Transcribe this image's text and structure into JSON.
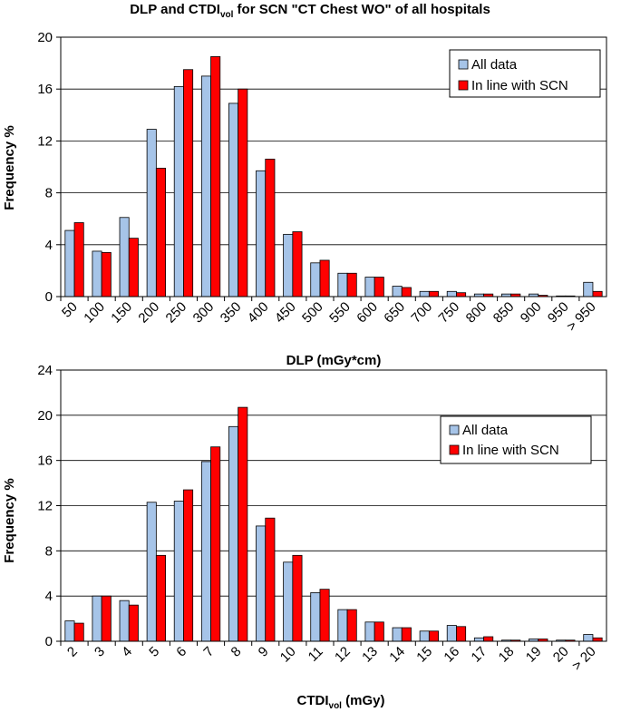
{
  "title": {
    "prefix": "DLP and CTDI",
    "subscript": "vol",
    "suffix": " for SCN \"CT Chest WO\" of all hospitals"
  },
  "colors": {
    "all_data": "#a6c4e8",
    "in_line": "#ff0000",
    "frame": "#000000",
    "grid": "#000000"
  },
  "chart_data": [
    {
      "type": "bar",
      "xlabel": "DLP (mGy*cm)",
      "ylabel": "Frequency %",
      "ylim": [
        0,
        20
      ],
      "yticks": [
        0,
        4,
        8,
        12,
        16,
        20
      ],
      "grid": true,
      "legend_position": "top-right",
      "categories": [
        "50",
        "100",
        "150",
        "200",
        "250",
        "300",
        "350",
        "400",
        "450",
        "500",
        "550",
        "600",
        "650",
        "700",
        "750",
        "800",
        "850",
        "900",
        "950",
        "> 950"
      ],
      "series": [
        {
          "name": "All data",
          "values": [
            5.1,
            3.5,
            6.1,
            12.9,
            16.2,
            17.0,
            14.9,
            9.7,
            4.8,
            2.6,
            1.8,
            1.5,
            0.8,
            0.4,
            0.4,
            0.2,
            0.2,
            0.2,
            0.05,
            1.1
          ]
        },
        {
          "name": "In line with SCN",
          "values": [
            5.7,
            3.4,
            4.5,
            9.9,
            17.5,
            18.5,
            16.0,
            10.6,
            5.0,
            2.8,
            1.8,
            1.5,
            0.7,
            0.4,
            0.3,
            0.2,
            0.2,
            0.1,
            0.05,
            0.4
          ]
        }
      ]
    },
    {
      "type": "bar",
      "xlabel_prefix": "CTDI",
      "xlabel_sub": "vol",
      "xlabel_suffix": " (mGy)",
      "ylabel": "Frequency %",
      "ylim": [
        0,
        24
      ],
      "yticks": [
        0,
        4,
        8,
        12,
        16,
        20,
        24
      ],
      "grid": true,
      "legend_position": "top-right",
      "categories": [
        "2",
        "3",
        "4",
        "5",
        "6",
        "7",
        "8",
        "9",
        "10",
        "11",
        "12",
        "13",
        "14",
        "15",
        "16",
        "17",
        "18",
        "19",
        "20",
        "> 20"
      ],
      "series": [
        {
          "name": "All data",
          "values": [
            1.8,
            4.0,
            3.6,
            12.3,
            12.4,
            15.9,
            19.0,
            10.2,
            7.0,
            4.3,
            2.8,
            1.7,
            1.2,
            0.9,
            1.4,
            0.3,
            0.1,
            0.2,
            0.1,
            0.6
          ]
        },
        {
          "name": "In line with SCN",
          "values": [
            1.6,
            4.0,
            3.2,
            7.6,
            13.4,
            17.2,
            20.7,
            10.9,
            7.6,
            4.6,
            2.8,
            1.7,
            1.2,
            0.9,
            1.3,
            0.4,
            0.1,
            0.2,
            0.1,
            0.3
          ]
        }
      ]
    }
  ]
}
